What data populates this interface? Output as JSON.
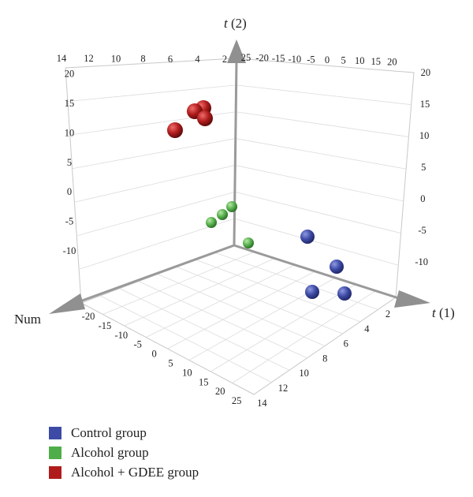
{
  "chart_data": {
    "type": "scatter",
    "title": "",
    "axes": {
      "t1": {
        "label": "t (1)",
        "label_italic": "t",
        "label_rest": " (1)",
        "ticks": [
          2,
          4,
          6,
          8,
          10,
          12,
          14
        ],
        "range": [
          0,
          15
        ]
      },
      "t2": {
        "label": "t (2)",
        "label_italic": "t",
        "label_rest": " (2)",
        "ticks": [
          -10,
          -5,
          0,
          5,
          10,
          15,
          20
        ],
        "range": [
          -14,
          21
        ]
      },
      "num": {
        "label": "Num",
        "ticks": [
          -20,
          -15,
          -10,
          -5,
          0,
          5,
          10,
          15,
          20,
          25
        ],
        "range": [
          -23,
          26
        ]
      }
    },
    "top_back_ticks": [
      "14",
      "12",
      "10",
      "8",
      "6",
      "4",
      "2",
      "25",
      "-20",
      "-15",
      "-10",
      "-5",
      "0",
      "5",
      "10",
      "15",
      "20"
    ],
    "grid": true,
    "legend_position": "bottom-left",
    "series": [
      {
        "name": "Control group",
        "color": "#3d4aa6",
        "points": [
          {
            "t1": 9,
            "num": -10,
            "t2": -3
          },
          {
            "t1": 11,
            "num": -7,
            "t2": -10
          },
          {
            "t1": 13,
            "num": -4,
            "t2": -14
          },
          {
            "t1": 15,
            "num": -1,
            "t2": -11
          }
        ]
      },
      {
        "name": "Alcohol group",
        "color": "#4fae4a",
        "points": [
          {
            "t1": 2,
            "num": -5,
            "t2": 0
          },
          {
            "t1": 3,
            "num": -10,
            "t2": 3
          },
          {
            "t1": 2,
            "num": -14,
            "t2": 5
          },
          {
            "t1": 3,
            "num": -3,
            "t2": -3
          }
        ]
      },
      {
        "name": "Alcohol + GDEE group",
        "color": "#b01c1c",
        "points": [
          {
            "t1": 2,
            "num": -15,
            "t2": 15
          },
          {
            "t1": 3,
            "num": -18,
            "t2": 14
          },
          {
            "t1": 3,
            "num": -19,
            "t2": 10
          },
          {
            "t1": 3,
            "num": -25,
            "t2": 10
          }
        ]
      }
    ]
  }
}
